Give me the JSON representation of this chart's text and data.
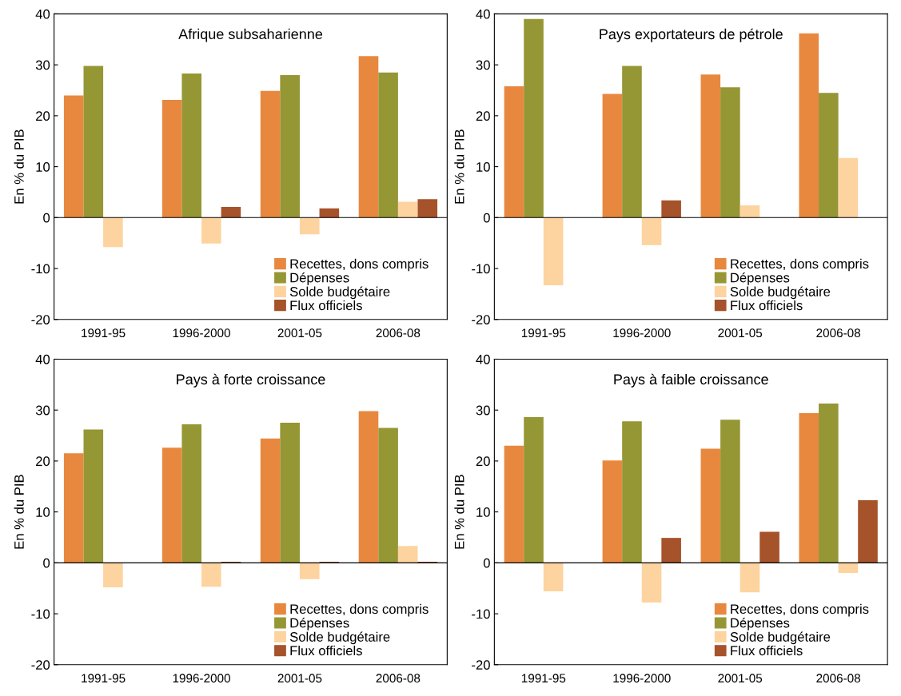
{
  "chart_data": [
    {
      "type": "bar",
      "title": "Afrique subsaharienne",
      "ylabel": "En % du PIB",
      "categories": [
        "1991-95",
        "1996-2000",
        "2001-05",
        "2006-08"
      ],
      "ylim": [
        -20,
        40
      ],
      "yticks": [
        -20,
        -10,
        0,
        10,
        20,
        30,
        40
      ],
      "grid": false,
      "legend": "bottom right",
      "ref_lines": [
        {
          "axis": "y",
          "value": 0,
          "color": "#000000"
        }
      ],
      "series": [
        {
          "name": "Recettes, dons compris",
          "color": "#e8883f",
          "values": [
            24.0,
            23.1,
            24.9,
            31.7
          ]
        },
        {
          "name": "Dépenses",
          "color": "#959634",
          "values": [
            29.8,
            28.3,
            28.0,
            28.5
          ]
        },
        {
          "name": "Solde budgétaire",
          "color": "#fdd39f",
          "values": [
            -5.8,
            -5.1,
            -3.3,
            3.1
          ]
        },
        {
          "name": "Flux officiels",
          "color": "#a6522a",
          "values": [
            null,
            2.1,
            1.8,
            3.6
          ]
        }
      ]
    },
    {
      "type": "bar",
      "title": "Pays exportateurs de pétrole",
      "ylabel": "En % du PIB",
      "categories": [
        "1991-95",
        "1996-2000",
        "2001-05",
        "2006-08"
      ],
      "ylim": [
        -20,
        40
      ],
      "yticks": [
        -20,
        -10,
        0,
        10,
        20,
        30,
        40
      ],
      "grid": false,
      "legend": "bottom right",
      "ref_lines": [
        {
          "axis": "y",
          "value": 0,
          "color": "#000000"
        }
      ],
      "series": [
        {
          "name": "Recettes, dons compris",
          "color": "#e8883f",
          "values": [
            25.8,
            24.3,
            28.1,
            36.2
          ]
        },
        {
          "name": "Dépenses",
          "color": "#959634",
          "values": [
            39.0,
            29.8,
            25.6,
            24.5
          ]
        },
        {
          "name": "Solde budgétaire",
          "color": "#fdd39f",
          "values": [
            -13.3,
            -5.4,
            2.4,
            11.7
          ]
        },
        {
          "name": "Flux officiels",
          "color": "#a6522a",
          "values": [
            null,
            3.4,
            null,
            null
          ]
        }
      ]
    },
    {
      "type": "bar",
      "title": "Pays à forte croissance",
      "ylabel": "En % du PIB",
      "categories": [
        "1991-95",
        "1996-2000",
        "2001-05",
        "2006-08"
      ],
      "ylim": [
        -20,
        40
      ],
      "yticks": [
        -20,
        -10,
        0,
        10,
        20,
        30,
        40
      ],
      "grid": false,
      "legend": "bottom right",
      "ref_lines": [
        {
          "axis": "y",
          "value": 0,
          "color": "#000000"
        }
      ],
      "series": [
        {
          "name": "Recettes, dons compris",
          "color": "#e8883f",
          "values": [
            21.5,
            22.6,
            24.4,
            29.8
          ]
        },
        {
          "name": "Dépenses",
          "color": "#959634",
          "values": [
            26.2,
            27.2,
            27.5,
            26.5
          ]
        },
        {
          "name": "Solde budgétaire",
          "color": "#fdd39f",
          "values": [
            -4.8,
            -4.7,
            -3.2,
            3.3
          ]
        },
        {
          "name": "Flux officiels",
          "color": "#a6522a",
          "values": [
            null,
            0.2,
            0.2,
            0.2
          ]
        }
      ]
    },
    {
      "type": "bar",
      "title": "Pays à faible croissance",
      "ylabel": "En % du PIB",
      "categories": [
        "1991-95",
        "1996-2000",
        "2001-05",
        "2006-08"
      ],
      "ylim": [
        -20,
        40
      ],
      "yticks": [
        -20,
        -10,
        0,
        10,
        20,
        30,
        40
      ],
      "grid": false,
      "legend": "bottom right",
      "ref_lines": [
        {
          "axis": "y",
          "value": 0,
          "color": "#000000"
        }
      ],
      "series": [
        {
          "name": "Recettes, dons compris",
          "color": "#e8883f",
          "values": [
            23.0,
            20.1,
            22.4,
            29.4
          ]
        },
        {
          "name": "Dépenses",
          "color": "#959634",
          "values": [
            28.6,
            27.8,
            28.1,
            31.3
          ]
        },
        {
          "name": "Solde budgétaire",
          "color": "#fdd39f",
          "values": [
            -5.6,
            -7.8,
            -5.8,
            -2.0
          ]
        },
        {
          "name": "Flux officiels",
          "color": "#a6522a",
          "values": [
            null,
            4.9,
            6.1,
            12.3
          ]
        }
      ]
    }
  ]
}
